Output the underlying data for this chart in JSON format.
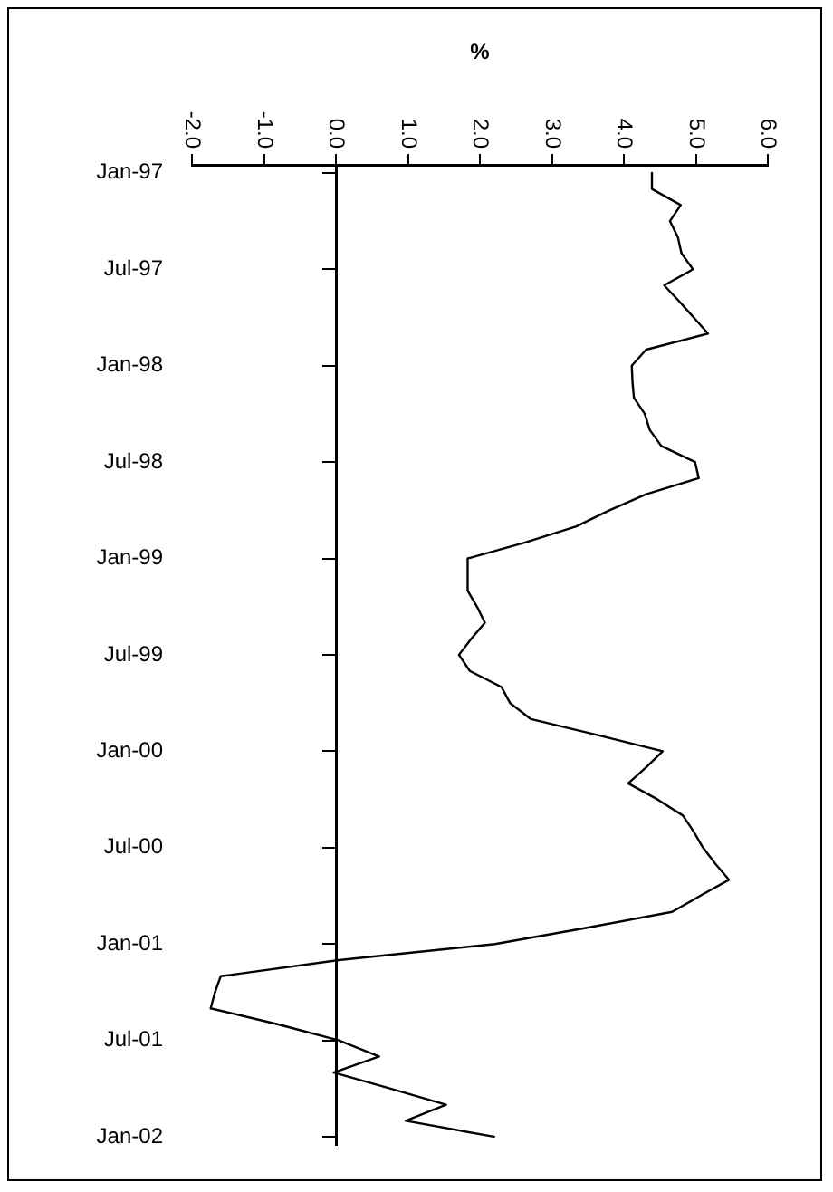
{
  "chart_data": {
    "type": "line",
    "orientation": "horizontal",
    "xlabel": "%",
    "categories": [
      "Jan-97",
      null,
      null,
      null,
      null,
      null,
      "Jul-97",
      null,
      null,
      null,
      null,
      null,
      "Jan-98",
      null,
      null,
      null,
      null,
      null,
      "Jul-98",
      null,
      null,
      null,
      null,
      null,
      "Jan-99",
      null,
      null,
      null,
      null,
      null,
      "Jul-99",
      null,
      null,
      null,
      null,
      null,
      "Jan-00",
      null,
      null,
      null,
      null,
      null,
      "Jul-00",
      null,
      null,
      null,
      null,
      null,
      "Jan-01",
      null,
      null,
      null,
      null,
      null,
      "Jul-01",
      null,
      null,
      null,
      null,
      null,
      "Jan-02"
    ],
    "series": [
      {
        "color": "#000000",
        "values": [
          4.39,
          4.39,
          4.79,
          4.64,
          4.75,
          4.8,
          4.96,
          4.56,
          4.77,
          4.97,
          5.17,
          4.31,
          4.11,
          4.12,
          4.14,
          4.29,
          4.36,
          4.52,
          4.99,
          5.04,
          4.31,
          3.8,
          3.34,
          2.63,
          1.83,
          1.83,
          1.83,
          1.96,
          2.07,
          1.88,
          1.71,
          1.86,
          2.3,
          2.42,
          2.71,
          3.64,
          4.54,
          4.31,
          4.06,
          4.47,
          4.82,
          4.97,
          5.1,
          5.27,
          5.46,
          5.06,
          4.67,
          3.47,
          2.21,
          0.04,
          -1.6,
          -1.68,
          -1.74,
          -0.8,
          0.04,
          0.6,
          -0.03,
          0.76,
          1.53,
          0.97,
          2.21
        ]
      }
    ],
    "xlim": [
      -2,
      6
    ],
    "xticks": [
      {
        "value": -2,
        "label": "-2.0"
      },
      {
        "value": -1,
        "label": "-1.0"
      },
      {
        "value": 0,
        "label": "0.0"
      },
      {
        "value": 1,
        "label": "1.0"
      },
      {
        "value": 2,
        "label": "2.0"
      },
      {
        "value": 3,
        "label": "3.0"
      },
      {
        "value": 4,
        "label": "4.0"
      },
      {
        "value": 5,
        "label": "5.0"
      },
      {
        "value": 6,
        "label": "6.0"
      }
    ],
    "marker": "none",
    "line_style": "solid"
  }
}
